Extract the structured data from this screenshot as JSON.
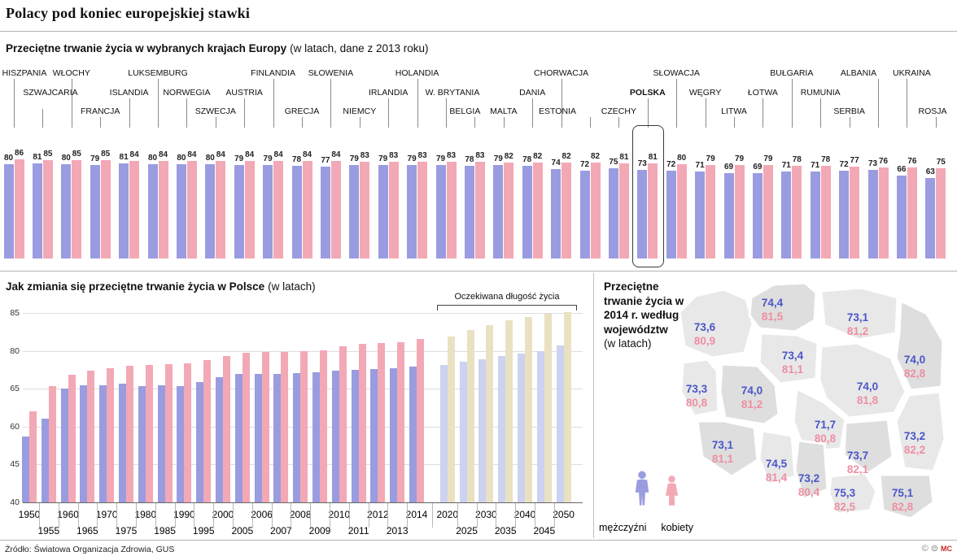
{
  "header": {
    "title": "Polacy pod koniec europejskiej stawki"
  },
  "legend": {
    "male": "mężczyźni",
    "female": "kobiety"
  },
  "colors": {
    "male": "#9a9ce0",
    "female": "#f3a8b5",
    "male_projection": "#ccd2f0",
    "female_projection": "#eae1c3",
    "map_male_text": "#4a55c8",
    "map_female_text": "#ee8fa2",
    "map_region_light": "#e8e8e8",
    "map_region_dark": "#dedede"
  },
  "chart_data": [
    {
      "id": "europe-2013",
      "type": "bar",
      "title": "Przeciętne trwanie życia w wybranych krajach Europy",
      "subtitle": "(w latach, dane z 2013 roku)",
      "legend_position": "none",
      "grid": false,
      "categories": [
        "HISZPANIA",
        "SZWAJCARIA",
        "WŁOCHY",
        "FRANCJA",
        "ISLANDIA",
        "LUKSEMBURG",
        "NORWEGIA",
        "SZWECJA",
        "AUSTRIA",
        "FINLANDIA",
        "GRECJA",
        "SŁOWENIA",
        "NIEMCY",
        "IRLANDIA",
        "HOLANDIA",
        "W. BRYTANIA",
        "BELGIA",
        "MALTA",
        "DANIA",
        "CHORWACJA",
        "ESTONIA",
        "CZECHY",
        "POLSKA",
        "SŁOWACJA",
        "WĘGRY",
        "LITWA",
        "ŁOTWA",
        "BUŁGARIA",
        "RUMUNIA",
        "SERBIA",
        "ALBANIA",
        "UKRAINA",
        "ROSJA"
      ],
      "label_levels": [
        0,
        1,
        0,
        2,
        1,
        0,
        1,
        2,
        1,
        0,
        2,
        0,
        2,
        1,
        0,
        1,
        2,
        2,
        1,
        0,
        2,
        2,
        1,
        0,
        1,
        2,
        1,
        0,
        1,
        2,
        0,
        0,
        2
      ],
      "series": [
        {
          "name": "mężczyźni",
          "values": [
            80,
            81,
            80,
            79,
            81,
            80,
            80,
            80,
            79,
            79,
            78,
            77,
            79,
            79,
            79,
            79,
            78,
            79,
            78,
            74,
            72,
            75,
            73,
            72,
            71,
            69,
            69,
            71,
            71,
            72,
            73,
            66,
            63
          ]
        },
        {
          "name": "kobiety",
          "values": [
            86,
            85,
            85,
            85,
            84,
            84,
            84,
            84,
            84,
            84,
            84,
            84,
            83,
            83,
            83,
            83,
            83,
            82,
            82,
            82,
            82,
            81,
            81,
            80,
            79,
            79,
            79,
            78,
            78,
            77,
            76,
            76,
            75
          ]
        }
      ],
      "highlight_category": "POLSKA"
    },
    {
      "id": "poland-trend",
      "type": "bar",
      "title": "Jak zmiania się przeciętne trwanie życia w Polsce",
      "subtitle": "(w latach)",
      "projection_label": "Oczekiwana długość życia",
      "grid": true,
      "yticks": [
        40,
        45,
        60,
        65,
        80,
        85
      ],
      "x": [
        1950,
        1955,
        1960,
        1965,
        1970,
        1975,
        1980,
        1985,
        1990,
        1995,
        2000,
        2005,
        2006,
        2007,
        2008,
        2009,
        2010,
        2011,
        2012,
        2013,
        2014,
        2020,
        2025,
        2030,
        2035,
        2040,
        2045,
        2050
      ],
      "projection_from_x": 2020,
      "series": [
        {
          "name": "mężczyźni",
          "values": [
            56,
            61,
            65,
            66.5,
            66.5,
            67,
            66,
            66.5,
            66,
            67.5,
            69.5,
            70.8,
            71,
            71,
            71.3,
            71.5,
            72,
            72.4,
            72.7,
            73.1,
            73.8,
            74.4,
            75.6,
            76.8,
            77.9,
            78.9,
            79.8,
            80.7
          ]
        },
        {
          "name": "kobiety",
          "values": [
            62,
            66,
            70.5,
            72,
            73,
            74,
            74.3,
            74.8,
            75,
            76.3,
            78,
            79.3,
            79.6,
            79.7,
            80,
            80.1,
            80.6,
            80.9,
            81,
            81.1,
            81.6,
            81.9,
            82.7,
            83.4,
            84,
            84.5,
            84.9,
            85.3
          ]
        }
      ]
    },
    {
      "id": "map-2014",
      "type": "heatmap",
      "title": "Przeciętne trwanie życia w 2014 r. według województw",
      "subtitle": "(w latach)",
      "regions": [
        {
          "name": "zachodniopomorskie",
          "male": "73,6",
          "female": "80,9"
        },
        {
          "name": "pomorskie",
          "male": "74,4",
          "female": "81,5"
        },
        {
          "name": "warminsko-mazurskie",
          "male": "73,1",
          "female": "81,2"
        },
        {
          "name": "podlaskie",
          "male": "74,0",
          "female": "82,8"
        },
        {
          "name": "kujawsko-pomorskie",
          "male": "73,4",
          "female": "81,1"
        },
        {
          "name": "lubuskie",
          "male": "73,3",
          "female": "80,8"
        },
        {
          "name": "wielkopolskie",
          "male": "74,0",
          "female": "81,2"
        },
        {
          "name": "mazowieckie",
          "male": "74,0",
          "female": "81,8"
        },
        {
          "name": "lodzkie",
          "male": "71,7",
          "female": "80,8"
        },
        {
          "name": "dolnoslaskie",
          "male": "73,1",
          "female": "81,1"
        },
        {
          "name": "opolskie",
          "male": "74,5",
          "female": "81,4"
        },
        {
          "name": "slaskie",
          "male": "73,2",
          "female": "80,4"
        },
        {
          "name": "swietokrzyskie",
          "male": "73,7",
          "female": "82,1"
        },
        {
          "name": "lubelskie",
          "male": "73,2",
          "female": "82,2"
        },
        {
          "name": "malopolskie",
          "male": "75,3",
          "female": "82,5"
        },
        {
          "name": "podkarpackie",
          "male": "75,1",
          "female": "82,8"
        }
      ]
    }
  ],
  "footer": {
    "source": "Źródło: Światowa Organizacja Zdrowia, GUS",
    "license_icons": [
      "©",
      "⊜"
    ],
    "mark": "MC"
  }
}
